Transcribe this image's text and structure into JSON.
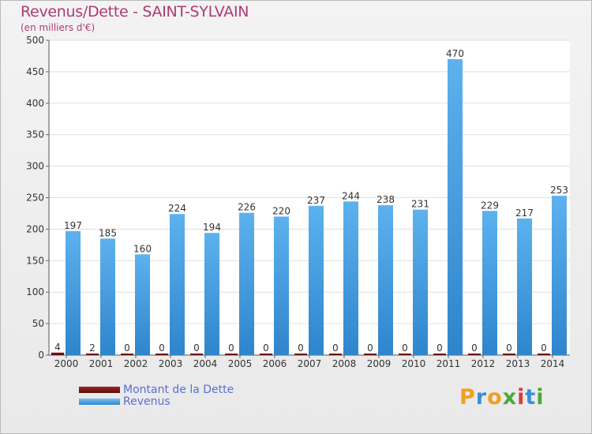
{
  "chart_data": {
    "type": "bar",
    "title": "Revenus/Dette - SAINT-SYLVAIN",
    "subtitle": "(en milliers d'€)",
    "categories": [
      "2000",
      "2001",
      "2002",
      "2003",
      "2004",
      "2005",
      "2006",
      "2007",
      "2008",
      "2009",
      "2010",
      "2011",
      "2012",
      "2013",
      "2014"
    ],
    "series": [
      {
        "name": "Montant de la Dette",
        "color": "#6b0f0f",
        "values": [
          4,
          2,
          0,
          0,
          0,
          0,
          0,
          0,
          0,
          0,
          0,
          0,
          0,
          0,
          0
        ]
      },
      {
        "name": "Revenus",
        "color": "#4aa3e6",
        "values": [
          197,
          185,
          160,
          224,
          194,
          226,
          220,
          237,
          244,
          238,
          231,
          470,
          229,
          217,
          253
        ]
      }
    ],
    "ylim": [
      0,
      500
    ],
    "yticks": [
      0,
      50,
      100,
      150,
      200,
      250,
      300,
      350,
      400,
      450,
      500
    ],
    "grid": true,
    "legend_position": "bottom-left"
  },
  "logo": {
    "letters": [
      "P",
      "r",
      "o",
      "x",
      "i",
      "t",
      "i"
    ],
    "colors": [
      "#f0a020",
      "#3b8fd8",
      "#f0a020",
      "#4aa83a",
      "#d83b3b",
      "#3b8fd8",
      "#4aa83a"
    ]
  }
}
